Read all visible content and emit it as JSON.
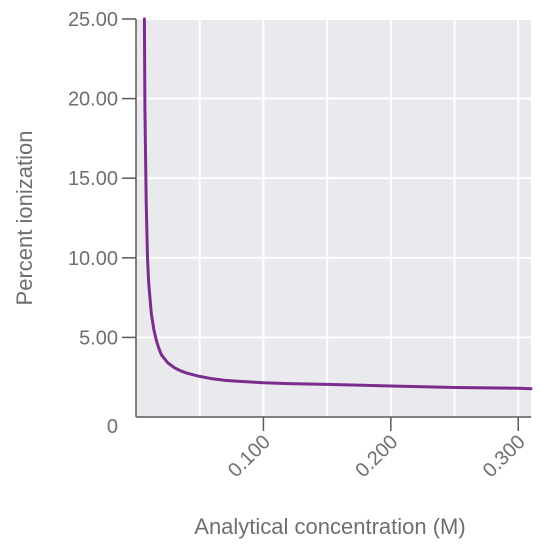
{
  "chart_data": {
    "type": "line",
    "title": "",
    "xlabel": "Analytical concentration (M)",
    "ylabel": "Percent ionization",
    "xlim": [
      0.0,
      0.31
    ],
    "ylim": [
      0,
      25
    ],
    "x_ticks": [
      {
        "value": 0.1,
        "label": "0.100"
      },
      {
        "value": 0.2,
        "label": "0.200"
      },
      {
        "value": 0.3,
        "label": "0.300"
      }
    ],
    "y_ticks": [
      {
        "value": 0,
        "label": "0"
      },
      {
        "value": 5,
        "label": "5.00"
      },
      {
        "value": 10,
        "label": "10.00"
      },
      {
        "value": 15,
        "label": "15.00"
      },
      {
        "value": 20,
        "label": "20.00"
      },
      {
        "value": 25,
        "label": "25.00"
      }
    ],
    "grid": true,
    "colors": {
      "plot_background": "#e9e9ee",
      "grid": "#ffffff",
      "axis": "#5b5b5d",
      "line": "#7b2d8e",
      "text": "#6f6f71"
    },
    "series": [
      {
        "x": [
          0.0066,
          0.007,
          0.008,
          0.009,
          0.01,
          0.012,
          0.014,
          0.016,
          0.018,
          0.02,
          0.025,
          0.03,
          0.035,
          0.04,
          0.05,
          0.06,
          0.07,
          0.08,
          0.1,
          0.12,
          0.15,
          0.2,
          0.25,
          0.3,
          0.31
        ],
        "y": [
          25.0,
          19.5,
          13.5,
          10.0,
          8.4,
          6.5,
          5.5,
          4.8,
          4.3,
          3.9,
          3.4,
          3.1,
          2.9,
          2.75,
          2.55,
          2.4,
          2.3,
          2.25,
          2.15,
          2.1,
          2.05,
          1.95,
          1.85,
          1.8,
          1.78
        ]
      }
    ]
  }
}
